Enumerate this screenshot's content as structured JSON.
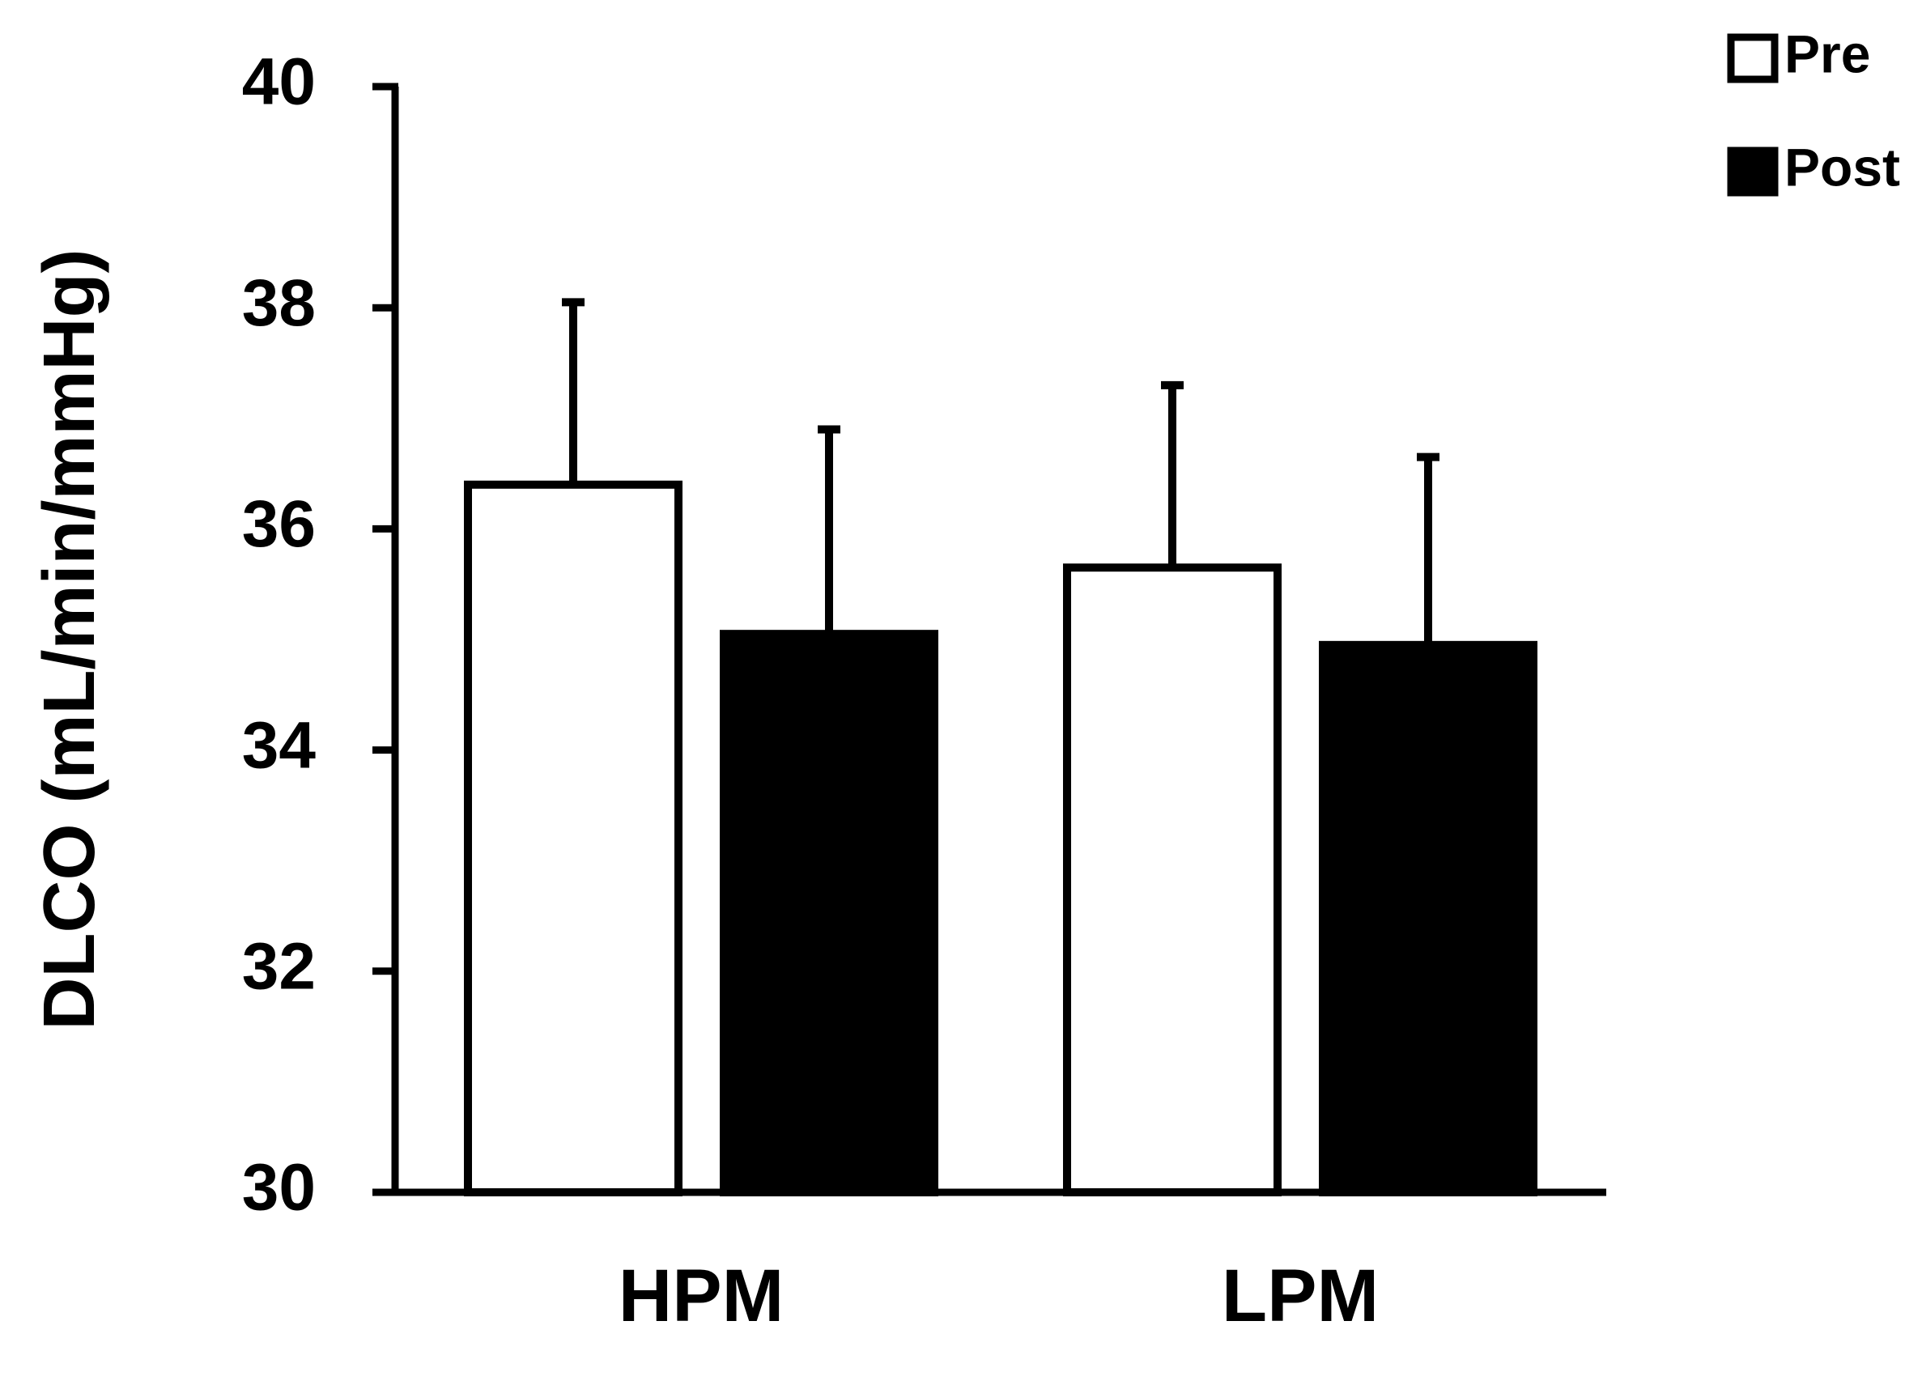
{
  "chart_data": {
    "type": "bar",
    "categories": [
      "HPM",
      "LPM"
    ],
    "series": [
      {
        "name": "Pre",
        "values": [
          36.4,
          35.65
        ],
        "error": [
          1.65,
          1.65
        ],
        "fill": "#ffffff"
      },
      {
        "name": "Post",
        "values": [
          35.05,
          34.95
        ],
        "error": [
          1.85,
          1.7
        ],
        "fill": "#000000"
      }
    ],
    "ylabel": "DLCO  (mL/min/mmHg)",
    "xlabel": "",
    "ylim": [
      30,
      40
    ],
    "yticks": [
      30,
      32,
      34,
      36,
      38,
      40
    ],
    "grid": false,
    "legend": "top-right",
    "stroke_color": "#000000"
  }
}
